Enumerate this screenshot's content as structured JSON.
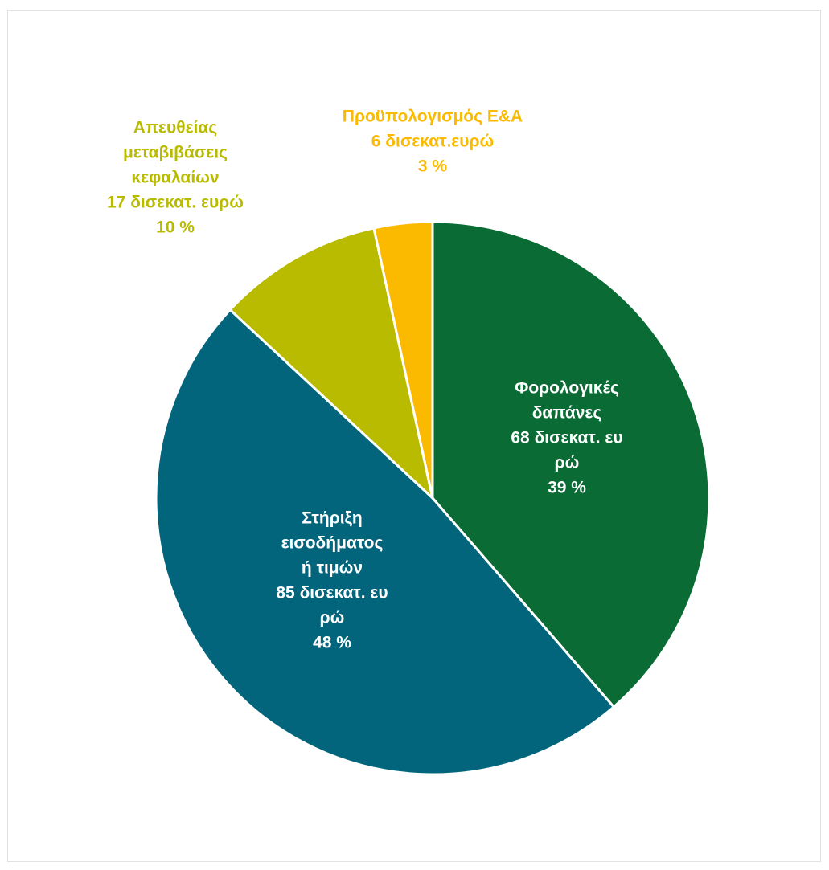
{
  "chart_data": {
    "type": "pie",
    "title": "",
    "slices": [
      {
        "name": "Φορολογικές δαπάνες",
        "value": 68,
        "percent": 39,
        "color": "#0a6b35",
        "label_color": "#ffffff",
        "label_lines": [
          "Φορολογικές",
          "δαπάνες",
          "68 δισεκατ. ευ",
          "ρώ",
          "39 %"
        ]
      },
      {
        "name": "Στήριξη εισοδήματος ή τιμών",
        "value": 85,
        "percent": 48,
        "color": "#02657c",
        "label_color": "#ffffff",
        "label_lines": [
          "Στήριξη",
          "εισοδήματος",
          "ή τιμών",
          "85 δισεκατ. ευ",
          "ρώ",
          "48 %"
        ]
      },
      {
        "name": "Απευθείας μεταβιβάσεις κεφαλαίων",
        "value": 17,
        "percent": 10,
        "color": "#b8bb00",
        "label_color": "#b8bb00",
        "label_lines": [
          "Απευθείας",
          "μεταβιβάσεις",
          "κεφαλαίων",
          "17 δισεκατ. ευρώ",
          "10 %"
        ]
      },
      {
        "name": "Προϋπολογισμός Ε&Α",
        "value": 6,
        "percent": 3,
        "color": "#fbba00",
        "label_color": "#fbba00",
        "label_lines": [
          "Προϋπολογισμός Ε&Α",
          "6 δισεκατ.ευρώ",
          "3 %"
        ]
      }
    ]
  }
}
